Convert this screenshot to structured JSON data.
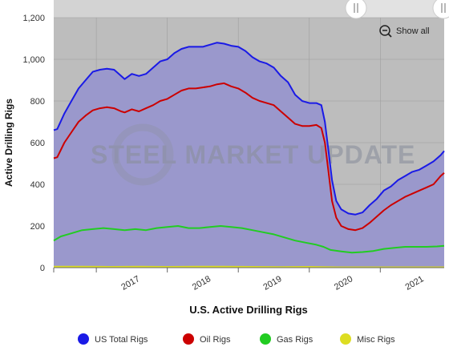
{
  "chart_data": {
    "type": "area",
    "xlabel": "U.S. Active Drilling Rigs",
    "ylabel": "Active Drilling Rigs",
    "ylim": [
      0,
      1200
    ],
    "yticks": [
      "0",
      "200",
      "400",
      "600",
      "800",
      "1,000",
      "1,200"
    ],
    "xticks": [
      "2017",
      "2018",
      "2019",
      "2020",
      "2021"
    ],
    "xrange": [
      2016.4,
      2021.9
    ],
    "grid": true,
    "legend_position": "bottom",
    "show_all_label": "Show all",
    "watermark": "STEEL MARKET UPDATE",
    "series": [
      {
        "name": "US Total Rigs",
        "color": "#1a1ae6",
        "points": [
          [
            2016.4,
            660
          ],
          [
            2016.45,
            665
          ],
          [
            2016.55,
            740
          ],
          [
            2016.65,
            800
          ],
          [
            2016.75,
            860
          ],
          [
            2016.85,
            900
          ],
          [
            2016.95,
            940
          ],
          [
            2017.05,
            950
          ],
          [
            2017.15,
            955
          ],
          [
            2017.25,
            950
          ],
          [
            2017.35,
            920
          ],
          [
            2017.4,
            905
          ],
          [
            2017.5,
            930
          ],
          [
            2017.6,
            920
          ],
          [
            2017.7,
            930
          ],
          [
            2017.8,
            960
          ],
          [
            2017.9,
            990
          ],
          [
            2018.0,
            1000
          ],
          [
            2018.1,
            1030
          ],
          [
            2018.2,
            1050
          ],
          [
            2018.3,
            1060
          ],
          [
            2018.4,
            1060
          ],
          [
            2018.5,
            1060
          ],
          [
            2018.6,
            1070
          ],
          [
            2018.7,
            1080
          ],
          [
            2018.8,
            1075
          ],
          [
            2018.9,
            1065
          ],
          [
            2019.0,
            1060
          ],
          [
            2019.1,
            1040
          ],
          [
            2019.2,
            1010
          ],
          [
            2019.3,
            990
          ],
          [
            2019.4,
            980
          ],
          [
            2019.5,
            960
          ],
          [
            2019.6,
            920
          ],
          [
            2019.7,
            890
          ],
          [
            2019.8,
            830
          ],
          [
            2019.9,
            800
          ],
          [
            2020.0,
            790
          ],
          [
            2020.1,
            790
          ],
          [
            2020.17,
            780
          ],
          [
            2020.22,
            700
          ],
          [
            2020.27,
            560
          ],
          [
            2020.32,
            420
          ],
          [
            2020.38,
            320
          ],
          [
            2020.45,
            280
          ],
          [
            2020.55,
            260
          ],
          [
            2020.65,
            255
          ],
          [
            2020.75,
            265
          ],
          [
            2020.85,
            300
          ],
          [
            2020.95,
            330
          ],
          [
            2021.05,
            370
          ],
          [
            2021.15,
            390
          ],
          [
            2021.25,
            420
          ],
          [
            2021.35,
            440
          ],
          [
            2021.45,
            460
          ],
          [
            2021.55,
            470
          ],
          [
            2021.65,
            490
          ],
          [
            2021.75,
            510
          ],
          [
            2021.85,
            540
          ],
          [
            2021.9,
            560
          ]
        ]
      },
      {
        "name": "Oil Rigs",
        "color": "#cc0000",
        "points": [
          [
            2016.4,
            525
          ],
          [
            2016.45,
            530
          ],
          [
            2016.55,
            600
          ],
          [
            2016.65,
            650
          ],
          [
            2016.75,
            700
          ],
          [
            2016.85,
            730
          ],
          [
            2016.95,
            755
          ],
          [
            2017.05,
            765
          ],
          [
            2017.15,
            770
          ],
          [
            2017.25,
            765
          ],
          [
            2017.35,
            750
          ],
          [
            2017.4,
            745
          ],
          [
            2017.5,
            760
          ],
          [
            2017.6,
            750
          ],
          [
            2017.7,
            765
          ],
          [
            2017.8,
            780
          ],
          [
            2017.9,
            800
          ],
          [
            2018.0,
            810
          ],
          [
            2018.1,
            830
          ],
          [
            2018.2,
            850
          ],
          [
            2018.3,
            860
          ],
          [
            2018.4,
            860
          ],
          [
            2018.5,
            865
          ],
          [
            2018.6,
            870
          ],
          [
            2018.7,
            880
          ],
          [
            2018.8,
            885
          ],
          [
            2018.9,
            870
          ],
          [
            2019.0,
            860
          ],
          [
            2019.1,
            840
          ],
          [
            2019.2,
            815
          ],
          [
            2019.3,
            800
          ],
          [
            2019.4,
            790
          ],
          [
            2019.5,
            780
          ],
          [
            2019.6,
            750
          ],
          [
            2019.7,
            720
          ],
          [
            2019.8,
            690
          ],
          [
            2019.9,
            680
          ],
          [
            2020.0,
            680
          ],
          [
            2020.1,
            685
          ],
          [
            2020.17,
            670
          ],
          [
            2020.22,
            600
          ],
          [
            2020.27,
            460
          ],
          [
            2020.32,
            320
          ],
          [
            2020.38,
            240
          ],
          [
            2020.45,
            200
          ],
          [
            2020.55,
            185
          ],
          [
            2020.65,
            180
          ],
          [
            2020.75,
            190
          ],
          [
            2020.85,
            215
          ],
          [
            2020.95,
            245
          ],
          [
            2021.05,
            275
          ],
          [
            2021.15,
            300
          ],
          [
            2021.25,
            320
          ],
          [
            2021.35,
            340
          ],
          [
            2021.45,
            355
          ],
          [
            2021.55,
            370
          ],
          [
            2021.65,
            385
          ],
          [
            2021.75,
            400
          ],
          [
            2021.85,
            440
          ],
          [
            2021.9,
            455
          ]
        ]
      },
      {
        "name": "Gas Rigs",
        "color": "#22cc22",
        "points": [
          [
            2016.4,
            130
          ],
          [
            2016.5,
            150
          ],
          [
            2016.6,
            160
          ],
          [
            2016.7,
            170
          ],
          [
            2016.8,
            180
          ],
          [
            2016.95,
            185
          ],
          [
            2017.1,
            190
          ],
          [
            2017.25,
            185
          ],
          [
            2017.4,
            180
          ],
          [
            2017.55,
            185
          ],
          [
            2017.7,
            180
          ],
          [
            2017.85,
            190
          ],
          [
            2018.0,
            195
          ],
          [
            2018.15,
            200
          ],
          [
            2018.3,
            190
          ],
          [
            2018.45,
            190
          ],
          [
            2018.6,
            195
          ],
          [
            2018.75,
            200
          ],
          [
            2018.9,
            195
          ],
          [
            2019.05,
            190
          ],
          [
            2019.2,
            180
          ],
          [
            2019.35,
            170
          ],
          [
            2019.5,
            160
          ],
          [
            2019.65,
            145
          ],
          [
            2019.8,
            130
          ],
          [
            2019.95,
            120
          ],
          [
            2020.1,
            110
          ],
          [
            2020.2,
            100
          ],
          [
            2020.3,
            85
          ],
          [
            2020.45,
            78
          ],
          [
            2020.6,
            72
          ],
          [
            2020.75,
            75
          ],
          [
            2020.9,
            80
          ],
          [
            2021.05,
            90
          ],
          [
            2021.2,
            95
          ],
          [
            2021.35,
            100
          ],
          [
            2021.5,
            100
          ],
          [
            2021.65,
            100
          ],
          [
            2021.8,
            102
          ],
          [
            2021.9,
            105
          ]
        ]
      },
      {
        "name": "Misc Rigs",
        "color": "#dddd22",
        "points": [
          [
            2016.4,
            5
          ],
          [
            2016.8,
            5
          ],
          [
            2017.2,
            4
          ],
          [
            2017.6,
            5
          ],
          [
            2018.0,
            4
          ],
          [
            2018.4,
            5
          ],
          [
            2018.8,
            5
          ],
          [
            2019.2,
            4
          ],
          [
            2019.6,
            3
          ],
          [
            2020.0,
            4
          ],
          [
            2020.4,
            2
          ],
          [
            2020.8,
            2
          ],
          [
            2021.2,
            2
          ],
          [
            2021.6,
            2
          ],
          [
            2021.9,
            2
          ]
        ]
      }
    ]
  }
}
